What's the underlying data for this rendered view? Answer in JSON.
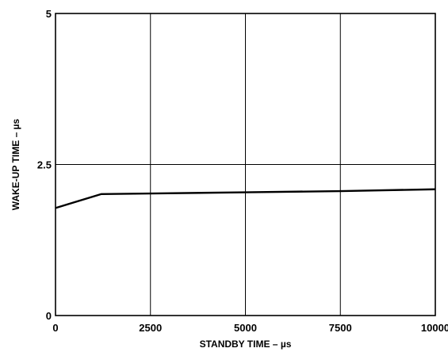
{
  "chart_data": {
    "type": "line",
    "xlabel": "STANDBY TIME – µs",
    "ylabel": "WAKE-UP TIME – µs",
    "xlim": [
      0,
      10000
    ],
    "ylim": [
      0,
      5
    ],
    "x_ticks": [
      0,
      2500,
      5000,
      7500,
      10000
    ],
    "x_tick_labels": [
      "0",
      "2500",
      "5000",
      "7500",
      "10000"
    ],
    "y_ticks": [
      0,
      2.5,
      5
    ],
    "y_tick_labels": [
      "0",
      "2.5",
      "5"
    ],
    "grid": true,
    "legend": "none",
    "series": [
      {
        "x": [
          0,
          1200,
          2500,
          5000,
          7500,
          10000
        ],
        "y": [
          1.78,
          2.01,
          2.02,
          2.04,
          2.06,
          2.09
        ]
      }
    ]
  }
}
